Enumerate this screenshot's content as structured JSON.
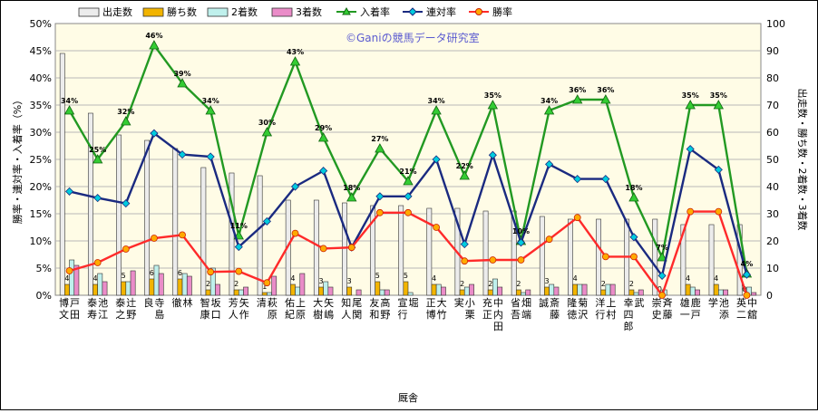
{
  "chart_data": {
    "type": "bar",
    "title": "",
    "xlabel": "厩舎",
    "ylabel_left": "勝率・連対率・入着率（%）",
    "ylabel_right": "出走数・勝ち数・2着数・3着数",
    "watermark": "©Ganiの競馬データ研究室",
    "ylim_left": [
      0,
      50
    ],
    "ylim_right": [
      0,
      100
    ],
    "yticks_left": [
      "0%",
      "5%",
      "10%",
      "15%",
      "20%",
      "25%",
      "30%",
      "35%",
      "40%",
      "45%",
      "50%"
    ],
    "yticks_right": [
      "0",
      "10",
      "20",
      "30",
      "40",
      "50",
      "60",
      "70",
      "80",
      "90",
      "100"
    ],
    "legend_position": "top",
    "categories": [
      "戸田 博文",
      "池江 泰寿",
      "辻野 泰之",
      "寺島 良",
      "林 徹",
      "坂口 智康",
      "矢作 芳人",
      "萩原 清",
      "上原 佑紀",
      "矢嶋 大樹",
      "尾関 知人",
      "高野 友和",
      "堀 宣行",
      "大竹 正博",
      "小栗 実",
      "中内田 充正",
      "畑端 省吾",
      "斎藤 誠",
      "菊沢 隆徳",
      "上村 洋行",
      "武 幸四郎",
      "斉藤 崇史",
      "鹿戸 雄一",
      "池添 学",
      "中舘 英二"
    ],
    "bar_series": [
      {
        "name": "出走数",
        "color": "#ececec",
        "values": [
          89,
          67,
          59,
          57,
          54,
          47,
          45,
          44,
          35,
          35,
          34,
          33,
          33,
          32,
          32,
          31,
          31,
          29,
          28,
          28,
          28,
          28,
          26,
          26,
          26
        ]
      },
      {
        "name": "勝ち数",
        "color": "#f2b400",
        "values": [
          4,
          4,
          5,
          6,
          6,
          2,
          2,
          1,
          4,
          3,
          3,
          5,
          5,
          4,
          2,
          2,
          2,
          3,
          4,
          2,
          2,
          0,
          4,
          4,
          0
        ]
      },
      {
        "name": "2着数",
        "color": "#bff0ec",
        "values": [
          13,
          8,
          5,
          11,
          8,
          10,
          2,
          1,
          3,
          5,
          0,
          2,
          1,
          4,
          3,
          6,
          1,
          4,
          4,
          4,
          1,
          2,
          3,
          2,
          3
        ]
      },
      {
        "name": "3着数",
        "color": "#ea8cc8",
        "values": [
          11,
          5,
          9,
          8,
          7,
          4,
          3,
          7,
          8,
          3,
          2,
          2,
          0,
          3,
          4,
          3,
          2,
          3,
          4,
          4,
          2,
          0,
          2,
          2,
          1
        ]
      }
    ],
    "line_series": [
      {
        "name": "入着率",
        "color": "#229922",
        "marker": "triangle",
        "values": [
          34,
          25,
          32,
          46,
          39,
          34,
          11,
          30,
          43,
          29,
          18,
          27,
          21,
          34,
          22,
          35,
          10,
          34,
          36,
          36,
          18,
          7,
          35,
          35,
          4
        ]
      },
      {
        "name": "連対率",
        "color": "#1a2a80",
        "marker": "diamond",
        "values": [
          19.1,
          17.9,
          16.9,
          29.8,
          25.9,
          25.5,
          8.9,
          13.6,
          20.0,
          22.9,
          8.8,
          18.2,
          18.2,
          25.0,
          9.4,
          25.8,
          9.7,
          24.1,
          21.4,
          21.4,
          10.7,
          3.6,
          26.9,
          23.1,
          3.8
        ]
      },
      {
        "name": "勝率",
        "color": "#ff2a2a",
        "marker": "circle",
        "values": [
          4.5,
          6.0,
          8.5,
          10.5,
          11.1,
          4.3,
          4.4,
          2.3,
          11.4,
          8.6,
          8.8,
          15.2,
          15.2,
          12.5,
          6.3,
          6.5,
          6.5,
          10.3,
          14.3,
          7.1,
          7.1,
          0,
          15.4,
          15.4,
          0
        ]
      }
    ],
    "line_labels": [
      "34%",
      "25%",
      "32%",
      "46%",
      "39%",
      "34%",
      "11%",
      "30%",
      "43%",
      "29%",
      "18%",
      "27%",
      "21%",
      "34%",
      "22%",
      "35%",
      "10%",
      "34%",
      "36%",
      "36%",
      "18%",
      "7%",
      "35%",
      "35%",
      "4%"
    ],
    "win_labels": [
      "4",
      "4",
      "5",
      "6",
      "6",
      "2",
      "2",
      "1",
      "4",
      "3",
      "3",
      "5",
      "5",
      "4",
      "2",
      "2",
      "2",
      "3",
      "4",
      "2",
      "2",
      "0",
      "4",
      "4",
      "0"
    ]
  }
}
